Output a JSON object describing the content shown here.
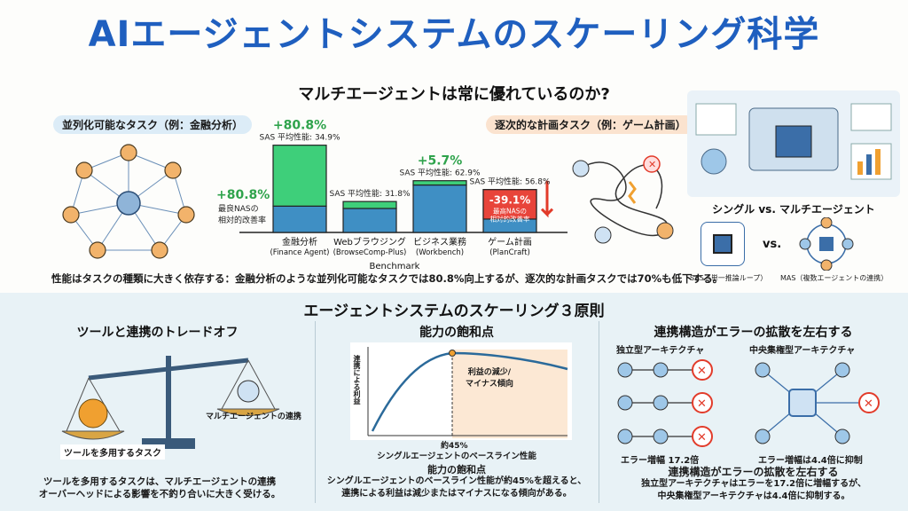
{
  "title": "AIエージェントシステムのスケーリング科学",
  "top": {
    "heading": "マルチエージェントは常に優れているのか?",
    "left_label": "並列化可能なタスク（例：金融分析）",
    "right_label": "逐次的な計画タスク（例：ゲーム計画）",
    "best_nas_pct": "+80.8%",
    "best_nas_label": "最良NASの\n相対的改善率",
    "chart_data": {
      "type": "bar",
      "xlabel": "Benchmark",
      "categories": [
        "金融分析\n(Finance Agent)",
        "Webブラウジング\n(BrowseComp-Plus)",
        "ビジネス業務\n(Workbench)",
        "ゲーム計画\n(PlanCraft)"
      ],
      "sas": [
        "SAS 平均性能: 34.9%",
        "SAS 平均性能: 31.8%",
        "SAS 平均性能: 62.9%",
        "SAS 平均性能: 56.8%"
      ],
      "improvement": [
        "+80.8%",
        "",
        "+5.7%",
        "-39.1%"
      ],
      "sas_values": [
        34.9,
        31.8,
        62.9,
        56.8
      ],
      "improvement_values": [
        80.8,
        9.2,
        5.7,
        -39.1
      ],
      "neg_label": "最高NASの\n相対的改善率"
    },
    "right_title": "シングル vs. マルチエージェント",
    "vs": "vs.",
    "sas_caption": "SAS（単一推論ループ）",
    "mas_caption": "MAS（複数エージェントの連携）",
    "summary": "性能はタスクの種類に大きく依存する：金融分析のような並列化可能なタスクでは80.8%向上するが、逐次的な計画タスクでは70%も低下する。"
  },
  "bottom": {
    "heading": "エージェントシステムのスケーリング３原則",
    "col1": {
      "title": "ツールと連携のトレードオフ",
      "left_tag": "ツールを多用するタスク",
      "right_tag": "マルチエージェントの連携",
      "caption": "ツールを多用するタスクは、マルチエージェントの連携\nオーバーヘッドによる影響を不釣り合いに大きく受ける。"
    },
    "col2": {
      "title": "能力の飽和点",
      "ylabel": "連携による利益",
      "annot": "利益の減少/\nマイナス傾向",
      "xmark": "約45%",
      "xlabel": "シングルエージェントのベースライン性能",
      "caption_title": "能力の飽和点",
      "caption": "シングルエージェントのベースライン性能が約45%を超えると、\n連携による利益は減少またはマイナスになる傾向がある。"
    },
    "col3": {
      "title": "連携構造がエラーの拡散を左右する",
      "left_arch": "独立型アーキテクチャ",
      "right_arch": "中央集権型アーキテクチャ",
      "left_err": "エラー増幅 17.2倍",
      "right_err": "エラー増幅は4.4倍に抑制",
      "caption_title": "連携構造がエラーの拡散を左右する",
      "caption": "独立型アーキテクチャはエラーを17.2倍に増幅するが、\n中央集権型アーキテクチャは4.4倍に抑制する。"
    }
  }
}
